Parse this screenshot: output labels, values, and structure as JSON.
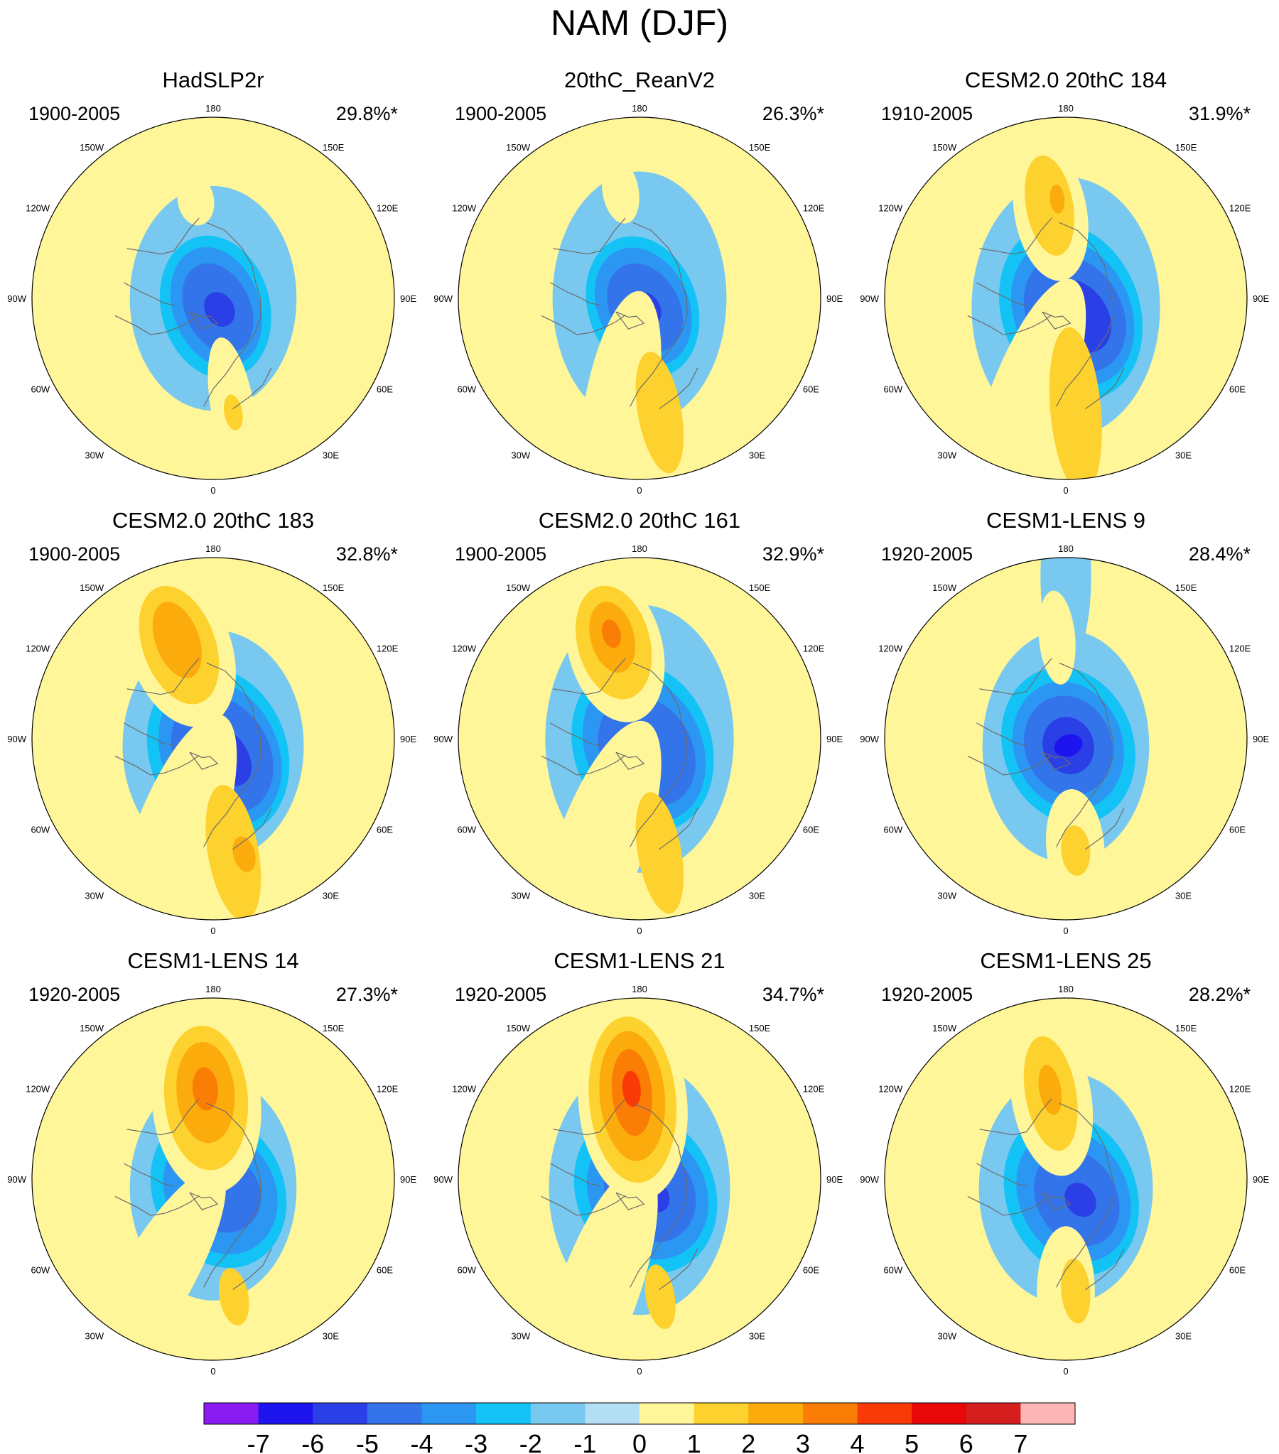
{
  "chart_data": {
    "type": "heatmap",
    "title": "NAM (DJF)",
    "projection": "north polar stereographic",
    "longitude_labels": [
      "180",
      "150W",
      "150E",
      "120W",
      "120E",
      "90W",
      "90E",
      "60W",
      "60E",
      "30W",
      "30E",
      "0"
    ],
    "colorbar": {
      "ticks": [
        "-7",
        "-6",
        "-5",
        "-4",
        "-3",
        "-2",
        "-1",
        "0",
        "1",
        "2",
        "3",
        "4",
        "5",
        "6",
        "7"
      ],
      "colors": [
        "#8a1cf2",
        "#1e14f0",
        "#2b3fe6",
        "#3474ea",
        "#2c97f3",
        "#14c3f6",
        "#79c8f0",
        "#b4def4",
        "#fff69a",
        "#fdd22f",
        "#fbab0c",
        "#fa7d06",
        "#fa3a06",
        "#e80808",
        "#d41d1d",
        "#fdb5b5"
      ]
    },
    "panels": [
      {
        "title": "HadSLP2r",
        "period": "1900-2005",
        "variance": "29.8%*",
        "features": [
          {
            "value": -1,
            "lon": 0,
            "r": 0,
            "sx": 0.62,
            "sy": 0.46
          },
          {
            "value": -2,
            "lon": 15,
            "r": 0.05,
            "sx": 0.4,
            "sy": 0.3
          },
          {
            "value": -3,
            "lon": 20,
            "r": 0.05,
            "sx": 0.34,
            "sy": 0.24
          },
          {
            "value": -4,
            "lon": 25,
            "r": 0.06,
            "sx": 0.26,
            "sy": 0.18
          },
          {
            "value": -5,
            "lon": 30,
            "r": 0.07,
            "sx": 0.1,
            "sy": 0.08
          },
          {
            "value": 1,
            "lon": 10,
            "r": 0.62,
            "sx": 0.4,
            "sy": 0.12
          },
          {
            "value": 2,
            "lon": 10,
            "r": 0.64,
            "sx": 0.1,
            "sy": 0.05
          },
          {
            "value": 1,
            "lon": -170,
            "r": 0.55,
            "sx": 0.14,
            "sy": 0.1
          }
        ]
      },
      {
        "title": "20thC_ReanV2",
        "period": "1900-2005",
        "variance": "26.3%*",
        "features": [
          {
            "value": -1,
            "lon": 0,
            "r": 0,
            "sx": 0.7,
            "sy": 0.48
          },
          {
            "value": -2,
            "lon": 20,
            "r": 0.05,
            "sx": 0.4,
            "sy": 0.3
          },
          {
            "value": -3,
            "lon": 25,
            "r": 0.05,
            "sx": 0.34,
            "sy": 0.25
          },
          {
            "value": -4,
            "lon": 30,
            "r": 0.06,
            "sx": 0.26,
            "sy": 0.19
          },
          {
            "value": -5,
            "lon": 30,
            "r": 0.07,
            "sx": 0.1,
            "sy": 0.08
          },
          {
            "value": 1,
            "lon": -10,
            "r": 0.62,
            "sx": 0.66,
            "sy": 0.2
          },
          {
            "value": 2,
            "lon": 10,
            "r": 0.64,
            "sx": 0.34,
            "sy": 0.12
          },
          {
            "value": 1,
            "lon": -170,
            "r": 0.6,
            "sx": 0.18,
            "sy": 0.1
          }
        ]
      },
      {
        "title": "CESM2.0 20thC 184",
        "period": "1910-2005",
        "variance": "31.9%*",
        "features": [
          {
            "value": -1,
            "lon": 0,
            "r": 0.05,
            "sx": 0.72,
            "sy": 0.52
          },
          {
            "value": -2,
            "lon": 20,
            "r": 0.08,
            "sx": 0.5,
            "sy": 0.38
          },
          {
            "value": -3,
            "lon": 25,
            "r": 0.09,
            "sx": 0.42,
            "sy": 0.32
          },
          {
            "value": -4,
            "lon": 30,
            "r": 0.1,
            "sx": 0.34,
            "sy": 0.26
          },
          {
            "value": -5,
            "lon": 35,
            "r": 0.12,
            "sx": 0.22,
            "sy": 0.16
          },
          {
            "value": 1,
            "lon": -20,
            "r": 0.64,
            "sx": 0.75,
            "sy": 0.22
          },
          {
            "value": 2,
            "lon": 5,
            "r": 0.62,
            "sx": 0.46,
            "sy": 0.14
          },
          {
            "value": 1,
            "lon": -170,
            "r": 0.48,
            "sx": 0.38,
            "sy": 0.2
          },
          {
            "value": 2,
            "lon": -170,
            "r": 0.52,
            "sx": 0.28,
            "sy": 0.13
          },
          {
            "value": 3,
            "lon": -175,
            "r": 0.55,
            "sx": 0.08,
            "sy": 0.04
          }
        ]
      },
      {
        "title": "CESM2.0 20thC 183",
        "period": "1900-2005",
        "variance": "32.8%*",
        "features": [
          {
            "value": -1,
            "lon": 0,
            "r": 0.04,
            "sx": 0.64,
            "sy": 0.5
          },
          {
            "value": -2,
            "lon": 20,
            "r": 0.08,
            "sx": 0.48,
            "sy": 0.38
          },
          {
            "value": -3,
            "lon": 25,
            "r": 0.09,
            "sx": 0.42,
            "sy": 0.32
          },
          {
            "value": -4,
            "lon": 30,
            "r": 0.1,
            "sx": 0.34,
            "sy": 0.26
          },
          {
            "value": -5,
            "lon": 35,
            "r": 0.12,
            "sx": 0.18,
            "sy": 0.12
          },
          {
            "value": 1,
            "lon": -20,
            "r": 0.64,
            "sx": 0.78,
            "sy": 0.24
          },
          {
            "value": 2,
            "lon": 10,
            "r": 0.64,
            "sx": 0.38,
            "sy": 0.14
          },
          {
            "value": 3,
            "lon": 15,
            "r": 0.66,
            "sx": 0.1,
            "sy": 0.06
          },
          {
            "value": 1,
            "lon": -160,
            "r": 0.52,
            "sx": 0.44,
            "sy": 0.28
          },
          {
            "value": 2,
            "lon": -160,
            "r": 0.55,
            "sx": 0.34,
            "sy": 0.2
          },
          {
            "value": 3,
            "lon": -160,
            "r": 0.58,
            "sx": 0.22,
            "sy": 0.12
          }
        ]
      },
      {
        "title": "CESM2.0 20thC 161",
        "period": "1900-2005",
        "variance": "32.9%*",
        "features": [
          {
            "value": -1,
            "lon": 0,
            "r": 0,
            "sx": 0.74,
            "sy": 0.52
          },
          {
            "value": -2,
            "lon": 20,
            "r": 0.05,
            "sx": 0.48,
            "sy": 0.38
          },
          {
            "value": -3,
            "lon": 25,
            "r": 0.06,
            "sx": 0.42,
            "sy": 0.32
          },
          {
            "value": -4,
            "lon": 30,
            "r": 0.08,
            "sx": 0.32,
            "sy": 0.25
          },
          {
            "value": 1,
            "lon": -20,
            "r": 0.64,
            "sx": 0.74,
            "sy": 0.24
          },
          {
            "value": 2,
            "lon": 10,
            "r": 0.64,
            "sx": 0.34,
            "sy": 0.12
          },
          {
            "value": 1,
            "lon": -165,
            "r": 0.52,
            "sx": 0.42,
            "sy": 0.26
          },
          {
            "value": 2,
            "lon": -165,
            "r": 0.55,
            "sx": 0.32,
            "sy": 0.2
          },
          {
            "value": 3,
            "lon": -165,
            "r": 0.58,
            "sx": 0.2,
            "sy": 0.12
          },
          {
            "value": 4,
            "lon": -165,
            "r": 0.6,
            "sx": 0.08,
            "sy": 0.05
          }
        ]
      },
      {
        "title": "CESM1-LENS 9",
        "period": "1920-2005",
        "variance": "28.4%*",
        "features": [
          {
            "value": -1,
            "lon": 0,
            "r": 0.04,
            "sx": 0.64,
            "sy": 0.46
          },
          {
            "value": -2,
            "lon": 20,
            "r": 0.04,
            "sx": 0.44,
            "sy": 0.36
          },
          {
            "value": -3,
            "lon": 20,
            "r": 0.04,
            "sx": 0.36,
            "sy": 0.3
          },
          {
            "value": -4,
            "lon": 20,
            "r": 0.04,
            "sx": 0.28,
            "sy": 0.24
          },
          {
            "value": -5,
            "lon": 20,
            "r": 0.04,
            "sx": 0.16,
            "sy": 0.14
          },
          {
            "value": -6,
            "lon": 20,
            "r": 0.04,
            "sx": 0.06,
            "sy": 0.08
          },
          {
            "value": -1,
            "lon": 180,
            "r": 0.9,
            "sx": 0.5,
            "sy": 0.14
          },
          {
            "value": 1,
            "lon": 5,
            "r": 0.6,
            "sx": 0.32,
            "sy": 0.16
          },
          {
            "value": 2,
            "lon": 5,
            "r": 0.62,
            "sx": 0.14,
            "sy": 0.08
          },
          {
            "value": 1,
            "lon": -175,
            "r": 0.56,
            "sx": 0.26,
            "sy": 0.1
          }
        ]
      },
      {
        "title": "CESM1-LENS 14",
        "period": "1920-2005",
        "variance": "27.3%*",
        "features": [
          {
            "value": -1,
            "lon": 0,
            "r": 0.05,
            "sx": 0.62,
            "sy": 0.46
          },
          {
            "value": -2,
            "lon": 25,
            "r": 0.07,
            "sx": 0.44,
            "sy": 0.36
          },
          {
            "value": -3,
            "lon": 30,
            "r": 0.08,
            "sx": 0.36,
            "sy": 0.3
          },
          {
            "value": -4,
            "lon": 35,
            "r": 0.1,
            "sx": 0.22,
            "sy": 0.2
          },
          {
            "value": 1,
            "lon": -30,
            "r": 0.66,
            "sx": 0.72,
            "sy": 0.2
          },
          {
            "value": 2,
            "lon": 10,
            "r": 0.66,
            "sx": 0.16,
            "sy": 0.08
          },
          {
            "value": 1,
            "lon": -175,
            "r": 0.42,
            "sx": 0.5,
            "sy": 0.3
          },
          {
            "value": 2,
            "lon": -175,
            "r": 0.45,
            "sx": 0.4,
            "sy": 0.23
          },
          {
            "value": 3,
            "lon": -175,
            "r": 0.48,
            "sx": 0.28,
            "sy": 0.16
          },
          {
            "value": 4,
            "lon": -175,
            "r": 0.5,
            "sx": 0.12,
            "sy": 0.07
          }
        ]
      },
      {
        "title": "CESM1-LENS 21",
        "period": "1920-2005",
        "variance": "34.7%*",
        "features": [
          {
            "value": -1,
            "lon": 0,
            "r": 0.05,
            "sx": 0.7,
            "sy": 0.5
          },
          {
            "value": -2,
            "lon": 25,
            "r": 0.08,
            "sx": 0.46,
            "sy": 0.38
          },
          {
            "value": -3,
            "lon": 30,
            "r": 0.09,
            "sx": 0.38,
            "sy": 0.32
          },
          {
            "value": -4,
            "lon": 35,
            "r": 0.1,
            "sx": 0.28,
            "sy": 0.24
          },
          {
            "value": -5,
            "lon": 40,
            "r": 0.12,
            "sx": 0.1,
            "sy": 0.08
          },
          {
            "value": 1,
            "lon": -20,
            "r": 0.66,
            "sx": 0.74,
            "sy": 0.22
          },
          {
            "value": 2,
            "lon": 10,
            "r": 0.66,
            "sx": 0.18,
            "sy": 0.08
          },
          {
            "value": 1,
            "lon": -175,
            "r": 0.42,
            "sx": 0.54,
            "sy": 0.3
          },
          {
            "value": 2,
            "lon": -175,
            "r": 0.44,
            "sx": 0.46,
            "sy": 0.24
          },
          {
            "value": 3,
            "lon": -175,
            "r": 0.46,
            "sx": 0.36,
            "sy": 0.18
          },
          {
            "value": 4,
            "lon": -175,
            "r": 0.48,
            "sx": 0.24,
            "sy": 0.11
          },
          {
            "value": 5,
            "lon": -175,
            "r": 0.5,
            "sx": 0.1,
            "sy": 0.05
          }
        ]
      },
      {
        "title": "CESM1-LENS 25",
        "period": "1920-2005",
        "variance": "28.2%*",
        "features": [
          {
            "value": -1,
            "lon": 0,
            "r": 0.05,
            "sx": 0.64,
            "sy": 0.48
          },
          {
            "value": -2,
            "lon": 20,
            "r": 0.09,
            "sx": 0.46,
            "sy": 0.36
          },
          {
            "value": -3,
            "lon": 25,
            "r": 0.1,
            "sx": 0.38,
            "sy": 0.3
          },
          {
            "value": -4,
            "lon": 30,
            "r": 0.12,
            "sx": 0.28,
            "sy": 0.22
          },
          {
            "value": -5,
            "lon": 35,
            "r": 0.14,
            "sx": 0.1,
            "sy": 0.08
          },
          {
            "value": 1,
            "lon": 0,
            "r": 0.62,
            "sx": 0.36,
            "sy": 0.16
          },
          {
            "value": 2,
            "lon": 5,
            "r": 0.62,
            "sx": 0.18,
            "sy": 0.08
          },
          {
            "value": 1,
            "lon": -170,
            "r": 0.46,
            "sx": 0.44,
            "sy": 0.22
          },
          {
            "value": 2,
            "lon": -170,
            "r": 0.48,
            "sx": 0.32,
            "sy": 0.14
          },
          {
            "value": 3,
            "lon": -170,
            "r": 0.5,
            "sx": 0.14,
            "sy": 0.06
          }
        ]
      }
    ]
  }
}
